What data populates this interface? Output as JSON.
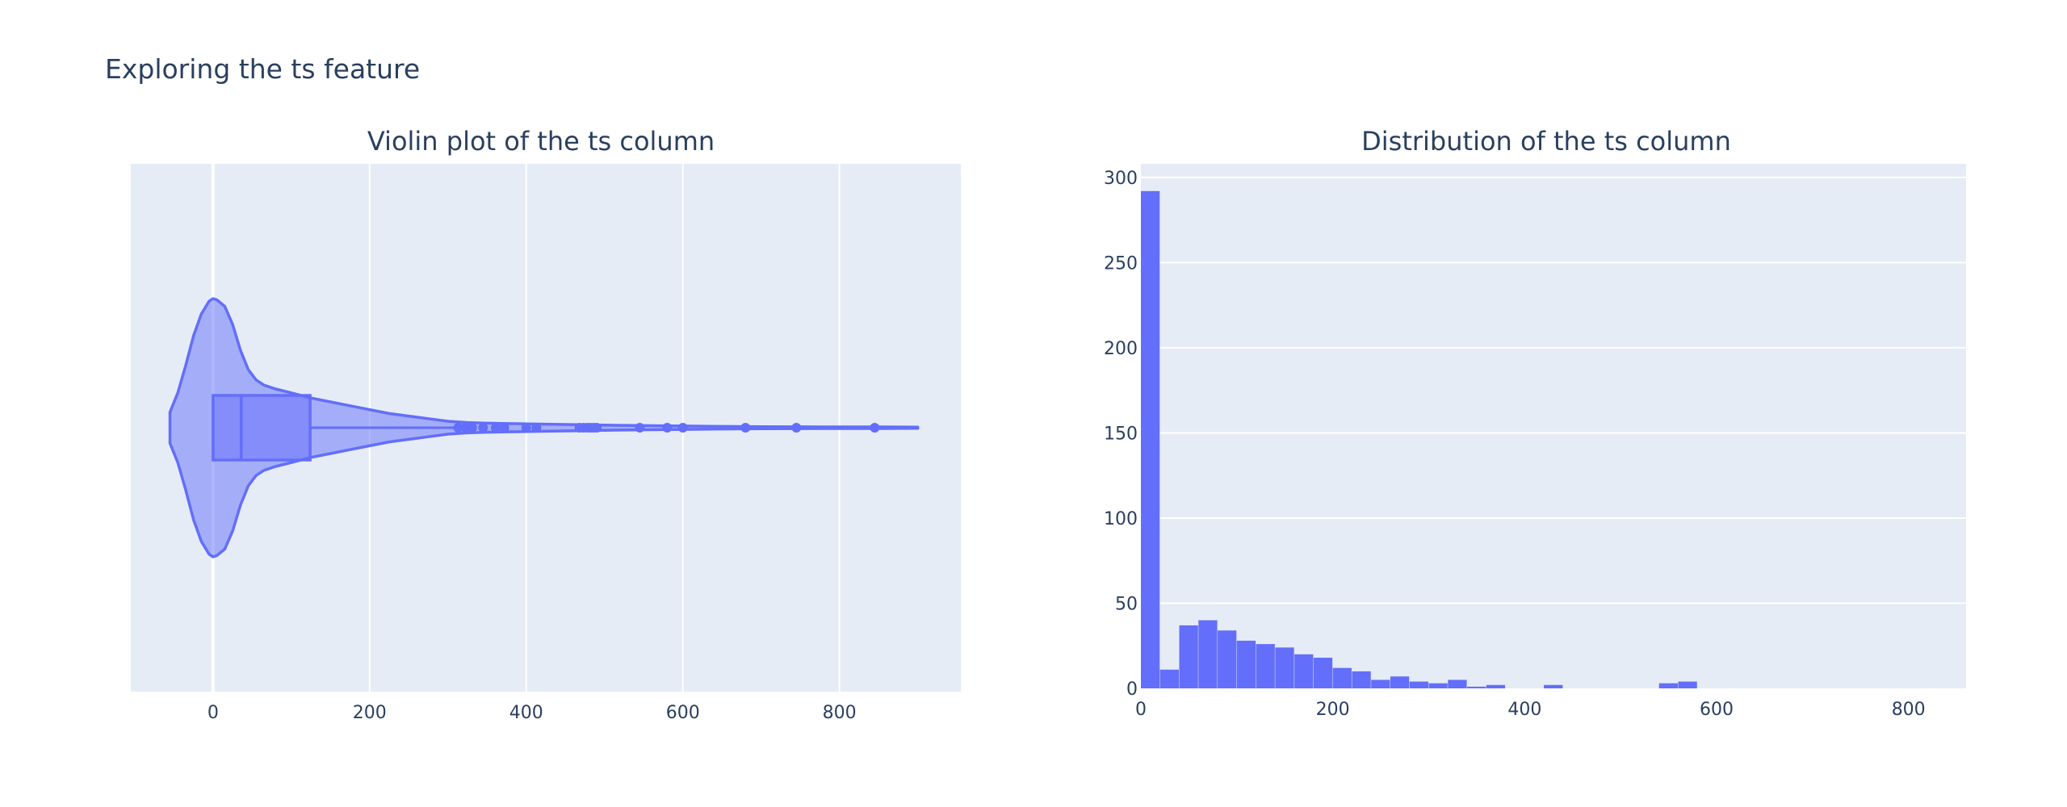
{
  "page": {
    "title": "Exploring the ts feature"
  },
  "colors": {
    "plot_bg": "#e5ecf6",
    "grid": "#ffffff",
    "trace": "#636efa",
    "text": "#2a3f5f"
  },
  "chart_data": [
    {
      "type": "violin",
      "title": "Violin plot of the ts column",
      "xlabel": "",
      "ylabel": "",
      "orientation": "horizontal",
      "xlim": [
        -105,
        955
      ],
      "x_ticks": [
        0,
        200,
        400,
        600,
        800
      ],
      "grid": true,
      "box": {
        "lower_fence": 0,
        "q1": 0,
        "median": 36,
        "q3": 124,
        "upper_fence": 310
      },
      "violin_extent": [
        -55,
        900
      ],
      "density_profile": [
        [
          -55,
          0.12
        ],
        [
          -45,
          0.27
        ],
        [
          -35,
          0.48
        ],
        [
          -25,
          0.71
        ],
        [
          -15,
          0.88
        ],
        [
          -5,
          0.98
        ],
        [
          0,
          1.0
        ],
        [
          5,
          0.99
        ],
        [
          15,
          0.94
        ],
        [
          25,
          0.8
        ],
        [
          35,
          0.6
        ],
        [
          45,
          0.45
        ],
        [
          55,
          0.37
        ],
        [
          65,
          0.33
        ],
        [
          80,
          0.3
        ],
        [
          100,
          0.27
        ],
        [
          125,
          0.23
        ],
        [
          150,
          0.2
        ],
        [
          175,
          0.17
        ],
        [
          200,
          0.14
        ],
        [
          225,
          0.11
        ],
        [
          250,
          0.09
        ],
        [
          275,
          0.07
        ],
        [
          300,
          0.05
        ],
        [
          325,
          0.04
        ],
        [
          350,
          0.035
        ],
        [
          400,
          0.03
        ],
        [
          450,
          0.025
        ],
        [
          500,
          0.02
        ],
        [
          550,
          0.016
        ],
        [
          600,
          0.013
        ],
        [
          650,
          0.01
        ],
        [
          700,
          0.008
        ],
        [
          750,
          0.007
        ],
        [
          800,
          0.006
        ],
        [
          850,
          0.006
        ],
        [
          900,
          0.005
        ]
      ],
      "outliers": [
        313,
        322,
        331,
        345,
        361,
        372,
        400,
        413,
        468,
        473,
        478,
        482,
        486,
        490,
        545,
        580,
        600,
        680,
        745,
        845
      ]
    },
    {
      "type": "histogram",
      "title": "Distribution of the ts column",
      "xlabel": "",
      "ylabel": "",
      "xlim": [
        0,
        860
      ],
      "ylim": [
        0,
        308
      ],
      "x_ticks": [
        0,
        200,
        400,
        600,
        800
      ],
      "y_ticks": [
        0,
        50,
        100,
        150,
        200,
        250,
        300
      ],
      "grid": true,
      "bin_width": 20,
      "bin_start": 0,
      "values": [
        292,
        11,
        37,
        40,
        34,
        28,
        26,
        24,
        20,
        18,
        12,
        10,
        5,
        7,
        4,
        3,
        5,
        1,
        2,
        0,
        0,
        2,
        0,
        0,
        0,
        0,
        0,
        3,
        4,
        0,
        0,
        0,
        0,
        0,
        0,
        0,
        0,
        0,
        0,
        0,
        0,
        0,
        0
      ]
    }
  ]
}
